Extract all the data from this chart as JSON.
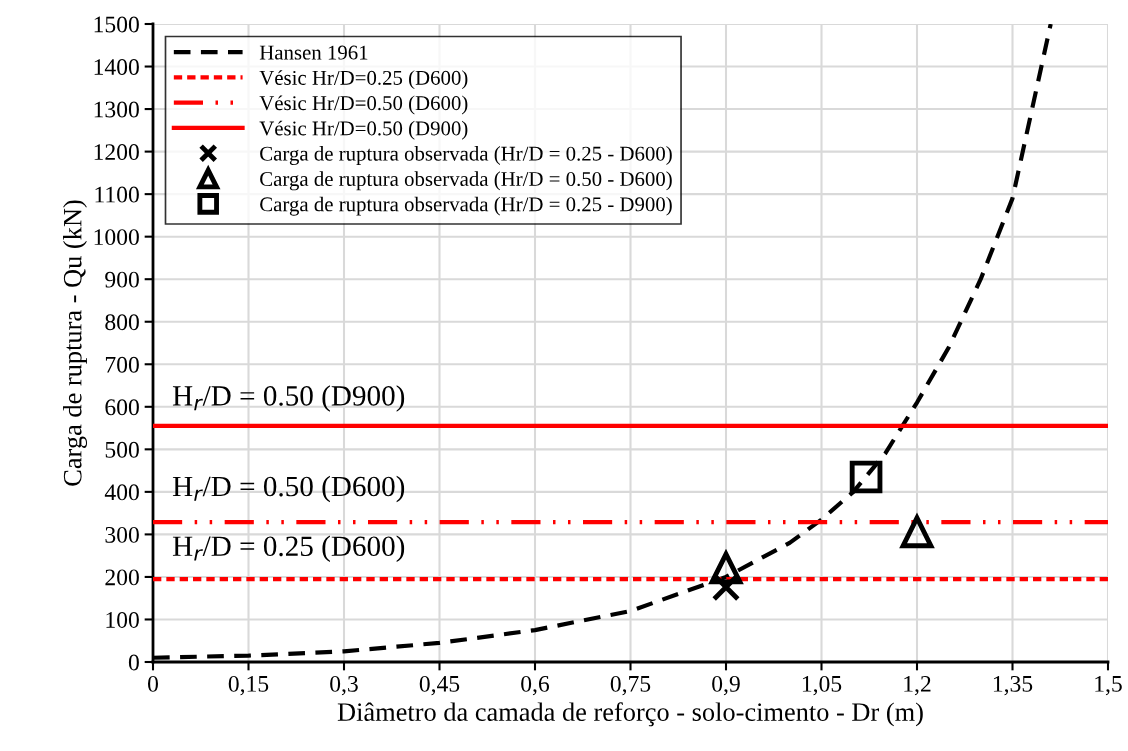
{
  "chart_data": {
    "type": "line",
    "xlabel": "Diâmetro da camada de reforço - solo-cimento - Dr (m)",
    "ylabel": "Carga de ruptura - Qu (kN)",
    "xlim": [
      0,
      1.5
    ],
    "ylim": [
      0,
      1500
    ],
    "xticks": [
      0,
      {
        "value": 0.15,
        "label": "0,15"
      },
      {
        "value": 0.3,
        "label": "0,3"
      },
      {
        "value": 0.45,
        "label": "0,45"
      },
      {
        "value": 0.6,
        "label": "0,6"
      },
      {
        "value": 0.75,
        "label": "0,75"
      },
      {
        "value": 0.9,
        "label": "0,9"
      },
      {
        "value": 1.05,
        "label": "1,05"
      },
      {
        "value": 1.2,
        "label": "1,2"
      },
      {
        "value": 1.35,
        "label": "1,35"
      },
      {
        "value": 1.5,
        "label": "1,5"
      }
    ],
    "yticks": [
      0,
      100,
      200,
      300,
      400,
      500,
      600,
      700,
      800,
      900,
      1000,
      1100,
      1200,
      1300,
      1400,
      1500
    ],
    "grid": true,
    "legend": "top left",
    "series": [
      {
        "name": "Hansen 1961",
        "color": "#000000",
        "line_style": "dashed",
        "x": [
          0,
          0.15,
          0.3,
          0.45,
          0.6,
          0.75,
          0.9,
          1.0,
          1.05,
          1.1,
          1.15,
          1.2,
          1.25,
          1.3,
          1.35,
          1.41
        ],
        "values": [
          10,
          15,
          25,
          45,
          75,
          120,
          200,
          280,
          335,
          400,
          490,
          610,
          740,
          900,
          1090,
          1500
        ]
      },
      {
        "name": "Vésic Hr/D=0.25 (D600)",
        "color": "#ff0000",
        "line_style": "short dashed",
        "x": [
          0,
          1.5
        ],
        "values": [
          195,
          195
        ]
      },
      {
        "name": "Vésic Hr/D=0.50 (D600)",
        "color": "#ff0000",
        "line_style": "dash dot dot",
        "x": [
          0,
          1.5
        ],
        "values": [
          329,
          329
        ]
      },
      {
        "name": "Vésic Hr/D=0.50 (D900)",
        "color": "#ff0000",
        "line_style": "solid",
        "x": [
          0,
          1.5
        ],
        "values": [
          555,
          555
        ]
      },
      {
        "name": "Carga de ruptura observada (Hr/D = 0.25 - D600)",
        "type": "scatter",
        "color": "#000000",
        "marker": "cross",
        "x": [
          0.9
        ],
        "values": [
          176
        ]
      },
      {
        "name": "Carga de ruptura observada (Hr/D = 0.50 - D600)",
        "type": "scatter",
        "color": "#000000",
        "marker": "triangle",
        "x": [
          0.9,
          1.2
        ],
        "values": [
          221,
          306
        ]
      },
      {
        "name": "Carga de ruptura observada (Hr/D = 0.25 - D900)",
        "type": "scatter",
        "color": "#000000",
        "marker": "square",
        "x": [
          1.12
        ],
        "values": [
          435
        ]
      }
    ],
    "annotations": [
      "H$_{r}$/D = 0.50 (D900)",
      "H$_{r}$/D = 0.50 (D600)",
      "H$_{r}$/D = 0.25 (D600)"
    ]
  }
}
